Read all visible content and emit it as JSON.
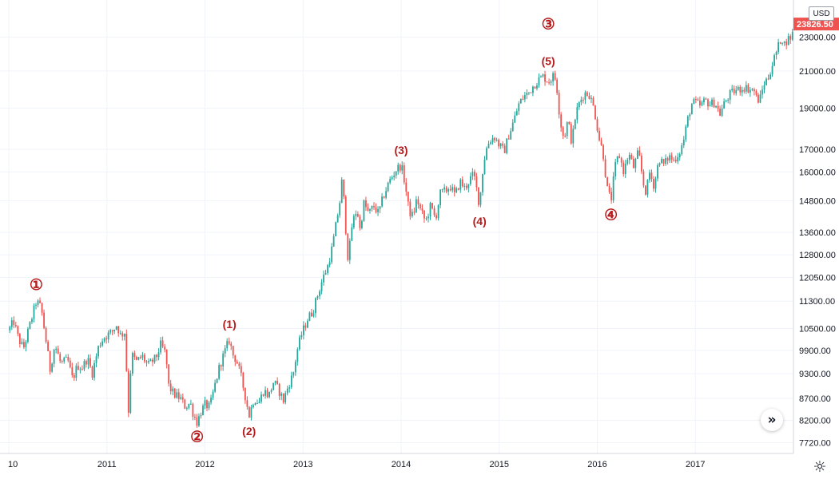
{
  "chart_data": {
    "type": "candlestick",
    "scale": "log",
    "grid": true,
    "currency": "USD",
    "last_price": "23826.50",
    "y_ticks": [
      "7720.00",
      "8200.00",
      "8700.00",
      "9300.00",
      "9900.00",
      "10500.00",
      "11300.00",
      "12050.00",
      "12800.00",
      "13600.00",
      "14800.00",
      "16000.00",
      "17000.00",
      "19000.00",
      "21000.00",
      "23000.00"
    ],
    "x_ticks": [
      {
        "label": "10",
        "year": 2010.0
      },
      {
        "label": "2011",
        "year": 2011.0
      },
      {
        "label": "2012",
        "year": 2012.0
      },
      {
        "label": "2013",
        "year": 2013.0
      },
      {
        "label": "2014",
        "year": 2014.0
      },
      {
        "label": "2015",
        "year": 2015.0
      },
      {
        "label": "2016",
        "year": 2016.0
      },
      {
        "label": "2017",
        "year": 2017.0
      }
    ],
    "ylim": [
      7500,
      25200
    ],
    "xlim": [
      2010.0,
      2018.0
    ],
    "price_path": [
      [
        2010.0,
        10450
      ],
      [
        2010.05,
        10700
      ],
      [
        2010.1,
        10200
      ],
      [
        2010.15,
        9950
      ],
      [
        2010.22,
        10650
      ],
      [
        2010.28,
        11300
      ],
      [
        2010.33,
        11100
      ],
      [
        2010.38,
        10150
      ],
      [
        2010.42,
        9400
      ],
      [
        2010.47,
        10050
      ],
      [
        2010.53,
        9550
      ],
      [
        2010.6,
        9650
      ],
      [
        2010.65,
        9150
      ],
      [
        2010.7,
        9500
      ],
      [
        2010.75,
        9450
      ],
      [
        2010.8,
        9700
      ],
      [
        2010.85,
        9300
      ],
      [
        2010.92,
        10050
      ],
      [
        2010.97,
        10250
      ],
      [
        2011.05,
        10400
      ],
      [
        2011.1,
        10600
      ],
      [
        2011.14,
        10300
      ],
      [
        2011.18,
        10400
      ],
      [
        2011.2,
        9400
      ],
      [
        2011.22,
        8400
      ],
      [
        2011.25,
        9800
      ],
      [
        2011.3,
        9600
      ],
      [
        2011.36,
        9750
      ],
      [
        2011.42,
        9500
      ],
      [
        2011.5,
        9700
      ],
      [
        2011.55,
        10050
      ],
      [
        2011.6,
        9800
      ],
      [
        2011.63,
        9000
      ],
      [
        2011.68,
        8800
      ],
      [
        2011.75,
        8700
      ],
      [
        2011.8,
        8500
      ],
      [
        2011.85,
        8600
      ],
      [
        2011.88,
        8350
      ],
      [
        2011.92,
        8150
      ],
      [
        2011.96,
        8400
      ],
      [
        2012.0,
        8550
      ],
      [
        2012.05,
        8500
      ],
      [
        2012.1,
        9000
      ],
      [
        2012.15,
        9500
      ],
      [
        2012.2,
        9850
      ],
      [
        2012.25,
        10200
      ],
      [
        2012.28,
        9800
      ],
      [
        2012.32,
        9650
      ],
      [
        2012.37,
        9200
      ],
      [
        2012.42,
        8650
      ],
      [
        2012.45,
        8300
      ],
      [
        2012.5,
        8700
      ],
      [
        2012.55,
        8600
      ],
      [
        2012.6,
        8900
      ],
      [
        2012.65,
        8750
      ],
      [
        2012.7,
        9100
      ],
      [
        2012.75,
        8900
      ],
      [
        2012.8,
        8650
      ],
      [
        2012.85,
        9000
      ],
      [
        2012.9,
        9300
      ],
      [
        2012.94,
        9900
      ],
      [
        2012.98,
        10300
      ],
      [
        2013.05,
        10800
      ],
      [
        2013.1,
        11000
      ],
      [
        2013.15,
        11500
      ],
      [
        2013.2,
        12000
      ],
      [
        2013.25,
        12400
      ],
      [
        2013.3,
        13100
      ],
      [
        2013.35,
        14200
      ],
      [
        2013.38,
        14900
      ],
      [
        2013.4,
        15800
      ],
      [
        2013.43,
        14000
      ],
      [
        2013.46,
        12600
      ],
      [
        2013.5,
        13900
      ],
      [
        2013.55,
        14500
      ],
      [
        2013.58,
        13700
      ],
      [
        2013.62,
        14700
      ],
      [
        2013.67,
        14300
      ],
      [
        2013.72,
        14600
      ],
      [
        2013.77,
        14300
      ],
      [
        2013.82,
        15000
      ],
      [
        2013.88,
        15600
      ],
      [
        2013.95,
        16100
      ],
      [
        2014.0,
        16300
      ],
      [
        2014.04,
        15500
      ],
      [
        2014.08,
        14400
      ],
      [
        2014.12,
        14200
      ],
      [
        2014.16,
        14900
      ],
      [
        2014.2,
        14400
      ],
      [
        2014.25,
        14000
      ],
      [
        2014.3,
        14600
      ],
      [
        2014.35,
        14100
      ],
      [
        2014.4,
        15100
      ],
      [
        2014.45,
        15200
      ],
      [
        2014.5,
        15400
      ],
      [
        2014.55,
        15000
      ],
      [
        2014.6,
        15600
      ],
      [
        2014.65,
        15300
      ],
      [
        2014.7,
        15700
      ],
      [
        2014.74,
        15900
      ],
      [
        2014.76,
        15500
      ],
      [
        2014.8,
        14600
      ],
      [
        2014.82,
        15700
      ],
      [
        2014.86,
        16900
      ],
      [
        2014.9,
        17400
      ],
      [
        2014.95,
        17600
      ],
      [
        2015.0,
        17200
      ],
      [
        2015.05,
        16900
      ],
      [
        2015.1,
        17700
      ],
      [
        2015.15,
        18400
      ],
      [
        2015.2,
        19200
      ],
      [
        2015.25,
        19600
      ],
      [
        2015.3,
        19800
      ],
      [
        2015.35,
        20200
      ],
      [
        2015.4,
        20500
      ],
      [
        2015.45,
        20700
      ],
      [
        2015.5,
        20400
      ],
      [
        2015.55,
        20700
      ],
      [
        2015.58,
        20500
      ],
      [
        2015.62,
        18400
      ],
      [
        2015.66,
        17500
      ],
      [
        2015.7,
        18400
      ],
      [
        2015.74,
        17300
      ],
      [
        2015.78,
        18700
      ],
      [
        2015.82,
        19300
      ],
      [
        2015.87,
        19800
      ],
      [
        2015.92,
        19700
      ],
      [
        2015.97,
        18900
      ],
      [
        2016.02,
        17500
      ],
      [
        2016.06,
        16800
      ],
      [
        2016.1,
        15300
      ],
      [
        2016.14,
        14800
      ],
      [
        2016.18,
        16200
      ],
      [
        2016.22,
        16800
      ],
      [
        2016.27,
        16000
      ],
      [
        2016.32,
        16800
      ],
      [
        2016.37,
        16200
      ],
      [
        2016.42,
        16900
      ],
      [
        2016.47,
        15500
      ],
      [
        2016.5,
        15100
      ],
      [
        2016.53,
        16000
      ],
      [
        2016.58,
        15400
      ],
      [
        2016.63,
        16600
      ],
      [
        2016.68,
        16300
      ],
      [
        2016.73,
        16700
      ],
      [
        2016.78,
        16500
      ],
      [
        2016.84,
        16900
      ],
      [
        2016.88,
        17400
      ],
      [
        2016.92,
        18400
      ],
      [
        2016.96,
        19200
      ],
      [
        2017.0,
        19300
      ],
      [
        2017.05,
        19100
      ],
      [
        2017.1,
        19400
      ],
      [
        2017.15,
        19200
      ],
      [
        2017.2,
        19300
      ],
      [
        2017.25,
        18700
      ],
      [
        2017.3,
        19300
      ],
      [
        2017.35,
        19700
      ],
      [
        2017.4,
        19900
      ],
      [
        2017.45,
        20000
      ],
      [
        2017.5,
        20100
      ],
      [
        2017.55,
        20000
      ],
      [
        2017.6,
        19900
      ],
      [
        2017.63,
        19400
      ],
      [
        2017.66,
        19500
      ],
      [
        2017.7,
        20300
      ],
      [
        2017.74,
        20600
      ],
      [
        2017.78,
        21300
      ],
      [
        2017.82,
        22000
      ],
      [
        2017.85,
        22500
      ],
      [
        2017.88,
        23100
      ],
      [
        2017.9,
        22500
      ],
      [
        2017.93,
        22800
      ],
      [
        2017.97,
        23000
      ],
      [
        2018.0,
        23300
      ]
    ],
    "wave_annotations": [
      {
        "label": "①",
        "x": 2010.28,
        "y": 11300,
        "pos": "above"
      },
      {
        "label": "②",
        "x": 2011.92,
        "y": 8150,
        "pos": "below"
      },
      {
        "label": "(1)",
        "x": 2012.25,
        "y": 10200,
        "pos": "above"
      },
      {
        "label": "(2)",
        "x": 2012.45,
        "y": 8300,
        "pos": "below"
      },
      {
        "label": "(3)",
        "x": 2014.0,
        "y": 16300,
        "pos": "above"
      },
      {
        "label": "(4)",
        "x": 2014.8,
        "y": 14600,
        "pos": "below"
      },
      {
        "label": "(5)",
        "x": 2015.5,
        "y": 20700,
        "pos": "above"
      },
      {
        "label": "③",
        "x": 2015.5,
        "y": 22800,
        "pos": "above"
      },
      {
        "label": "④",
        "x": 2016.14,
        "y": 14800,
        "pos": "below"
      }
    ]
  },
  "ui": {
    "currency_label": "USD",
    "scroll_glyph": "»",
    "settings_glyph": "☼"
  }
}
